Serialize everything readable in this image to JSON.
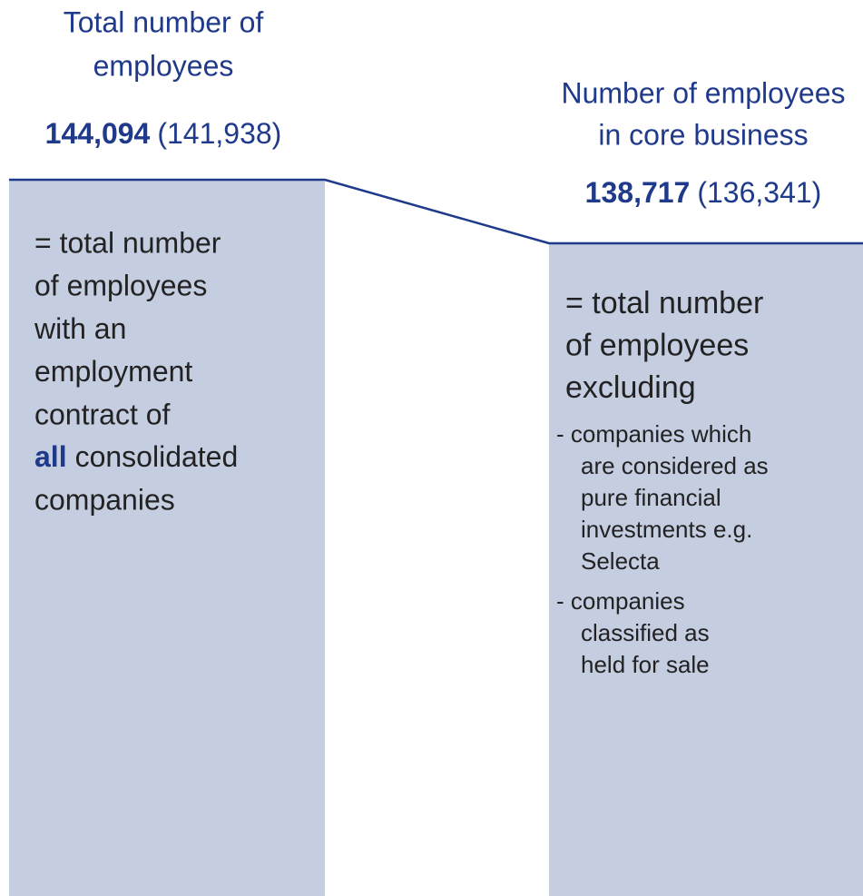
{
  "left": {
    "title": [
      "Total number of",
      "employees"
    ],
    "value": "144,094",
    "prior": "(141,938)",
    "description": [
      "= total number",
      "of employees",
      "with an",
      "employment",
      "contract of",
      {
        "emphasis": "all",
        "text": "consolidated"
      },
      "companies"
    ]
  },
  "right": {
    "title": [
      "Number of employees",
      "in core business"
    ],
    "value": "138,717",
    "prior": "(136,341)",
    "description": [
      "= total number",
      "of employees",
      "excluding"
    ],
    "exclusions": [
      [
        "- companies which",
        "are considered as",
        "pure financial",
        "investments e.g.",
        "Selecta"
      ],
      [
        "- companies",
        "classified as",
        "held for sale"
      ]
    ]
  }
}
